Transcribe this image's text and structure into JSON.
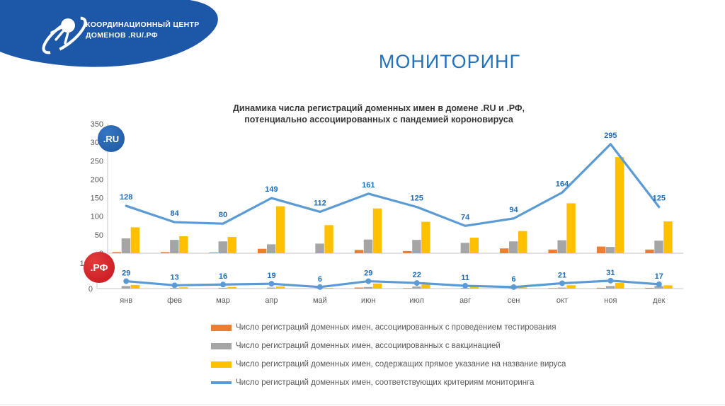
{
  "header": {
    "logo_line1": "КООРДИНАЦИОННЫЙ ЦЕНТР",
    "logo_line2": "ДОМЕНОВ .RU/.РФ",
    "page_title": "МОНИТОРИНГ"
  },
  "chart": {
    "title_line1": "Динамика числа регистраций доменных имен в домене .RU и .РФ,",
    "title_line2": "потенциально ассоциированных с пандемией короновируса",
    "badges": {
      "ru": ".RU",
      "rf": ".РФ"
    }
  },
  "colors": {
    "band_blue": "#1D58A8",
    "title_blue": "#2273BF",
    "data_label_blue": "#1F6DB8",
    "rf_red": "#C6161F",
    "bar_orange": "#ED7D31",
    "bar_gray": "#A5A5A5",
    "bar_yellow": "#FFC000",
    "line_blue": "#5B9BD5",
    "axis_gray": "#C6C6C6",
    "text_gray": "#595959"
  },
  "chart_data": [
    {
      "type": "bar",
      "domain": ".RU",
      "categories": [
        "янв",
        "фев",
        "мар",
        "апр",
        "май",
        "июн",
        "июл",
        "авг",
        "сен",
        "окт",
        "ноя",
        "дек"
      ],
      "ylim": [
        0,
        350
      ],
      "yticks": [
        0,
        50,
        100,
        150,
        200,
        250,
        300,
        350
      ],
      "grid": false,
      "series": [
        {
          "name": "Число регистраций доменных имен, ассоциированных с проведением тестирования",
          "type": "bar",
          "color": "#ED7D31",
          "values": [
            3,
            3,
            2,
            12,
            1,
            9,
            6,
            1,
            13,
            10,
            18,
            10
          ]
        },
        {
          "name": "Число регистраций доменных имен, ассоциированных с вакцинацией",
          "type": "bar",
          "color": "#A5A5A5",
          "values": [
            40,
            36,
            32,
            24,
            26,
            37,
            36,
            28,
            32,
            35,
            17,
            34
          ]
        },
        {
          "name": "Число регистраций доменных имен, содержащих прямое указание на название вируса",
          "type": "bar",
          "color": "#FFC000",
          "values": [
            70,
            46,
            44,
            127,
            76,
            121,
            85,
            42,
            60,
            135,
            260,
            86
          ]
        },
        {
          "name": "Число регистраций доменных имен, соответствующих критериям мониторинга",
          "type": "line",
          "color": "#5B9BD5",
          "labeled": true,
          "values": [
            128,
            84,
            80,
            149,
            112,
            161,
            125,
            74,
            94,
            164,
            295,
            125
          ]
        }
      ]
    },
    {
      "type": "bar",
      "domain": ".РФ",
      "categories": [
        "янв",
        "фев",
        "мар",
        "апр",
        "май",
        "июн",
        "июл",
        "авг",
        "сен",
        "окт",
        "ноя",
        "дек"
      ],
      "ylim": [
        0,
        100
      ],
      "yticks": [
        0,
        100
      ],
      "grid": false,
      "series": [
        {
          "name": "Число регистраций доменных имен, ассоциированных с проведением тестирования",
          "type": "bar",
          "color": "#ED7D31",
          "values": [
            1,
            1,
            1,
            1,
            1,
            4,
            2,
            1,
            1,
            2,
            3,
            3
          ]
        },
        {
          "name": "Число регистраций доменных имен, ассоциированных с вакцинацией",
          "type": "bar",
          "color": "#A5A5A5",
          "values": [
            10,
            3,
            3,
            4,
            2,
            6,
            8,
            3,
            2,
            4,
            10,
            10
          ]
        },
        {
          "name": "Число регистраций доменных имен, содержащих прямое указание на название вируса",
          "type": "bar",
          "color": "#FFC000",
          "values": [
            14,
            5,
            6,
            8,
            3,
            20,
            16,
            8,
            5,
            13,
            22,
            13
          ]
        },
        {
          "name": "Число регистраций доменных имен, соответствующих критериям мониторинга",
          "type": "line",
          "color": "#5B9BD5",
          "labeled": true,
          "values": [
            29,
            13,
            16,
            19,
            6,
            29,
            22,
            11,
            6,
            21,
            31,
            17
          ]
        }
      ]
    }
  ],
  "legend": {
    "items": [
      {
        "label": "Число регистраций доменных имен, ассоциированных с проведением тестирования",
        "color": "#ED7D31",
        "shape": "bar"
      },
      {
        "label": "Число регистраций доменных имен, ассоциированных с вакцинацией",
        "color": "#A5A5A5",
        "shape": "bar"
      },
      {
        "label": "Число регистраций доменных имен, содержащих прямое указание на название вируса",
        "color": "#FFC000",
        "shape": "bar"
      },
      {
        "label": "Число регистраций доменных имен, соответствующих критериям мониторинга",
        "color": "#5B9BD5",
        "shape": "line"
      }
    ]
  }
}
